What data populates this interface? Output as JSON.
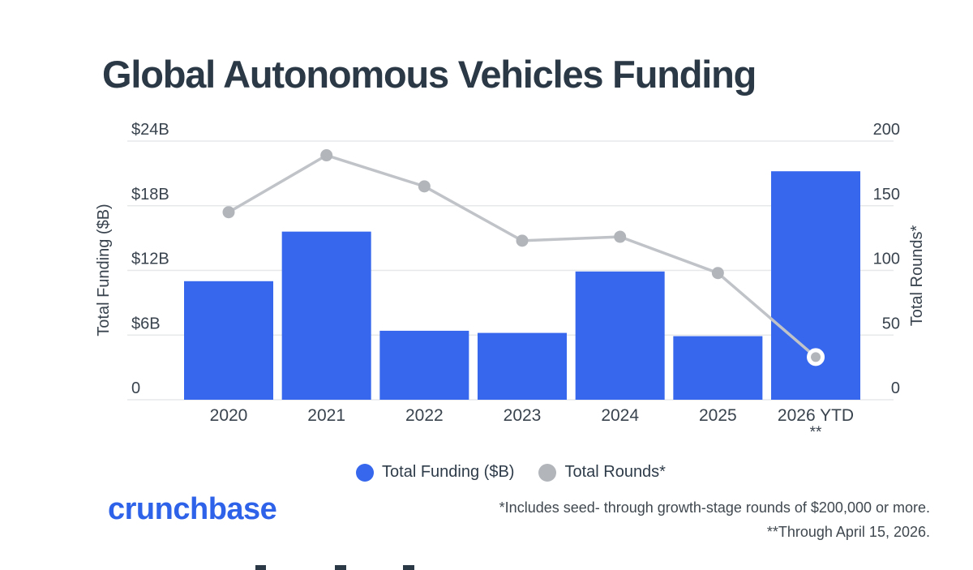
{
  "title": "Global Autonomous Vehicles Funding",
  "chart_data": {
    "type": "bar",
    "subtype": "bar-line-combo",
    "categories": [
      "2020",
      "2021",
      "2022",
      "2023",
      "2024",
      "2025",
      "2026 YTD"
    ],
    "x_note": "**",
    "x_note_category": "2026 YTD",
    "series": [
      {
        "name": "Total Funding ($B)",
        "type": "bar",
        "axis": "left",
        "color": "#3667ec",
        "values": [
          11.0,
          15.6,
          6.4,
          6.2,
          11.9,
          5.9,
          21.2
        ]
      },
      {
        "name": "Total Rounds*",
        "type": "line",
        "axis": "right",
        "color": "#c0c3c8",
        "point_color": "#b2b6bb",
        "values": [
          145,
          189,
          165,
          123,
          126,
          98,
          33
        ]
      }
    ],
    "left_axis": {
      "label": "Total Funding ($B)",
      "ticks": [
        "$24B",
        "$18B",
        "$12B",
        "$6B",
        "0"
      ],
      "tick_values": [
        24,
        18,
        12,
        6,
        0
      ],
      "range": [
        0,
        24
      ]
    },
    "right_axis": {
      "label": "Total Rounds*",
      "ticks": [
        "200",
        "150",
        "100",
        "50",
        "0"
      ],
      "tick_values": [
        200,
        150,
        100,
        50,
        0
      ],
      "range": [
        0,
        200
      ]
    },
    "grid": "horizontal",
    "legend_position": "bottom",
    "colors": {
      "grid_line": "#e7e8ea",
      "axis_text": "#39434e",
      "last_point_ring": "#ffffff"
    }
  },
  "legend": [
    {
      "label": "Total Funding ($B)",
      "color": "#3667ec"
    },
    {
      "label": "Total Rounds*",
      "color": "#b2b6bb"
    }
  ],
  "footnotes": [
    "*Includes seed- through growth-stage rounds of $200,000 or more.",
    "**Through April 15, 2026."
  ],
  "logo": "crunchbase"
}
